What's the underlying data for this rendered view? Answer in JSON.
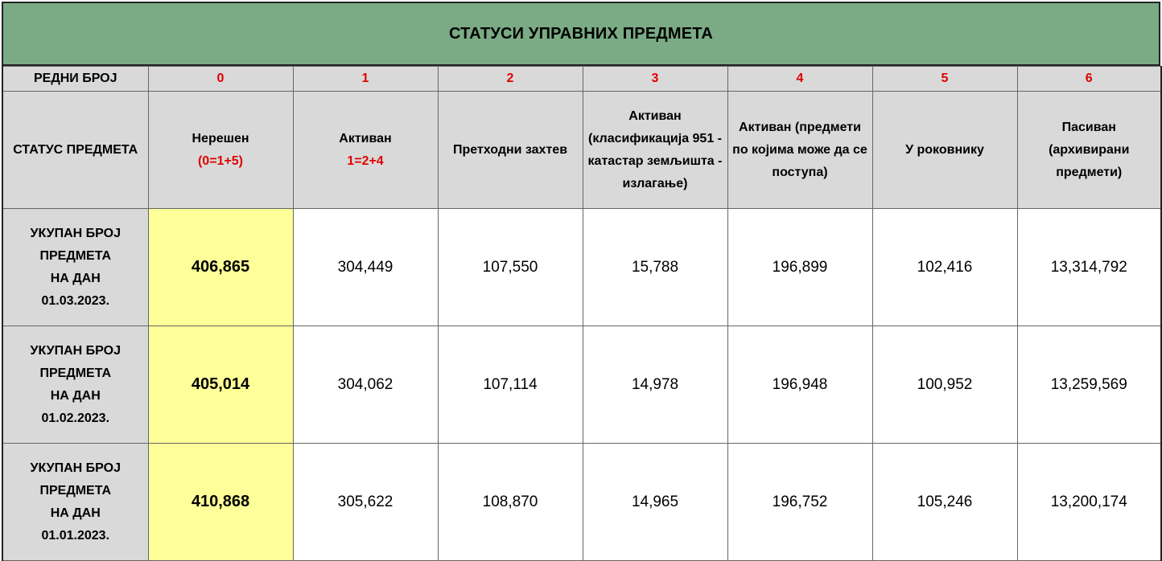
{
  "title": "СТАТУСИ УПРАВНИХ ПРЕДМЕТА",
  "index_row": {
    "label": "РЕДНИ БРОЈ",
    "numbers": [
      "0",
      "1",
      "2",
      "3",
      "4",
      "5",
      "6"
    ]
  },
  "status_row": {
    "label": "СТАТУС ПРЕДМЕТА",
    "columns": [
      {
        "text": "Нерешен",
        "formula": "(0=1+5)"
      },
      {
        "text": "Активан",
        "formula": "1=2+4"
      },
      {
        "text": "Претходни захтев",
        "formula": ""
      },
      {
        "text": "Активан (класификација 951 -  катастар земљишта - излагање)",
        "formula": ""
      },
      {
        "text": "Активан (предмети по којима може да се поступа)",
        "formula": ""
      },
      {
        "text": "У роковнику",
        "formula": ""
      },
      {
        "text": "Пасиван (архивирани предмети)",
        "formula": ""
      }
    ]
  },
  "rows": [
    {
      "label_lines": [
        "УКУПАН БРОЈ",
        "ПРЕДМЕТА",
        "НА ДАН",
        "01.03.2023."
      ],
      "values": [
        "406,865",
        "304,449",
        "107,550",
        "15,788",
        "196,899",
        "102,416",
        "13,314,792"
      ]
    },
    {
      "label_lines": [
        "УКУПАН БРОЈ",
        "ПРЕДМЕТА",
        "НА ДАН",
        "01.02.2023."
      ],
      "values": [
        "405,014",
        "304,062",
        "107,114",
        "14,978",
        "196,948",
        "100,952",
        "13,259,569"
      ]
    },
    {
      "label_lines": [
        "УКУПАН БРОЈ",
        "ПРЕДМЕТА",
        "НА ДАН",
        "01.01.2023."
      ],
      "values": [
        "410,868",
        "305,622",
        "108,870",
        "14,965",
        "196,752",
        "105,246",
        "13,200,174"
      ]
    }
  ],
  "colors": {
    "title_bg": "#7aab84",
    "header_bg": "#d9d9d9",
    "highlight_bg": "#ffff99",
    "index_text": "#e00000"
  }
}
